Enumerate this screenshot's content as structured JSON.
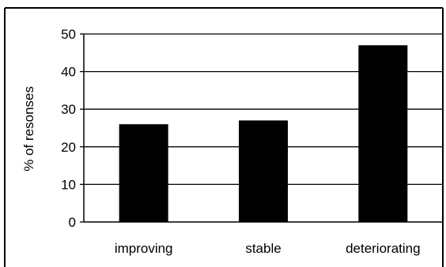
{
  "chart_data": {
    "type": "bar",
    "categories": [
      "improving",
      "stable",
      "deteriorating"
    ],
    "values": [
      26,
      27,
      47
    ],
    "title": "",
    "xlabel": "",
    "ylabel": "% of resonses",
    "ylim": [
      0,
      50
    ],
    "yticks": [
      0,
      10,
      20,
      30,
      40,
      50
    ],
    "grid": true,
    "legend": "none",
    "colors": {
      "bar": "#000000",
      "grid": "#000000",
      "frame": "#000000",
      "background": "#ffffff"
    }
  }
}
